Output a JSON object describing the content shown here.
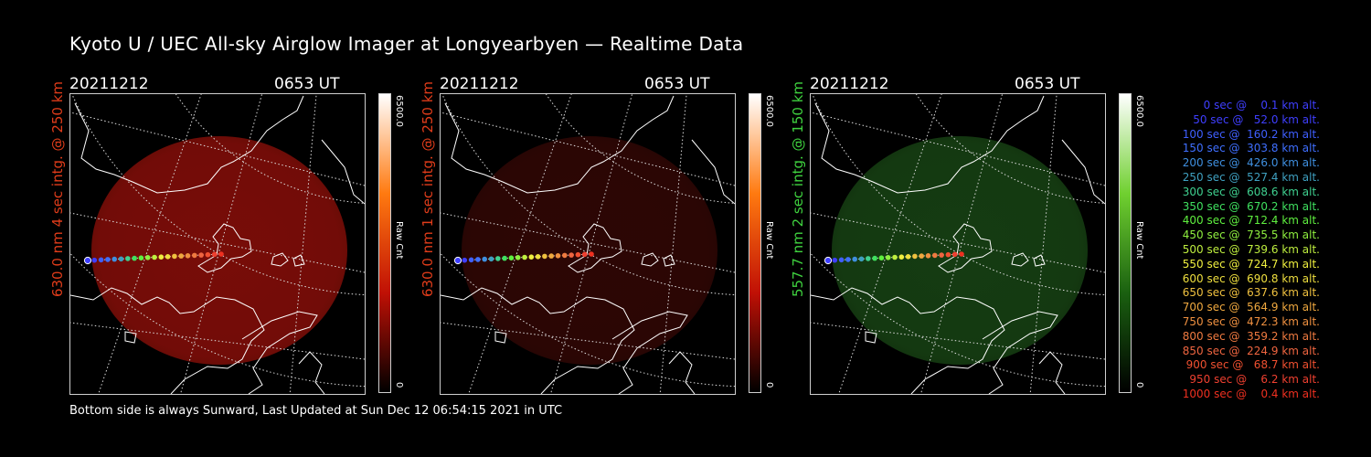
{
  "title": "Kyoto U / UEC All-sky Airglow Imager at Longyearbyen — Realtime Data",
  "footer": "Bottom side is always Sunward, Last Updated at Sun Dec 12 06:54:15 2021 in UTC",
  "panels": [
    {
      "date": "20211212",
      "time": "0653 UT",
      "label": "630.0 nm 4 sec intg. @ 250 km",
      "label_color": "#e03c1a",
      "cbar_max": "6500.0",
      "cbar_min": "0",
      "cbar_unit": "Raw Cnt",
      "glow_color": "#7a0d08",
      "glow_level": 0.55,
      "cbar_colors": [
        "#ffffff",
        "#ff7a10",
        "#c01005",
        "#000000"
      ]
    },
    {
      "date": "20211212",
      "time": "0653 UT",
      "label": "630.0 nm 1 sec intg. @ 250 km",
      "label_color": "#e03c1a",
      "cbar_max": "6500.0",
      "cbar_min": "0",
      "cbar_unit": "Raw Cnt",
      "glow_color": "#3a0806",
      "glow_level": 0.25,
      "cbar_colors": [
        "#ffffff",
        "#ff7a10",
        "#c01005",
        "#000000"
      ]
    },
    {
      "date": "20211212",
      "time": "0653 UT",
      "label": "557.7 nm 2 sec intg. @ 150 km",
      "label_color": "#3fd23f",
      "cbar_max": "6500.0",
      "cbar_min": "0",
      "cbar_unit": "Raw Cnt",
      "glow_color": "#1a4a16",
      "glow_level": 0.3,
      "cbar_colors": [
        "#ffffff",
        "#70d030",
        "#1a6010",
        "#000000"
      ]
    }
  ],
  "legend": [
    {
      "text": "   0 sec @    0.1 km alt.",
      "color": "#3f3fff"
    },
    {
      "text": "  50 sec @   52.0 km alt.",
      "color": "#3f3fff"
    },
    {
      "text": " 100 sec @  160.2 km alt.",
      "color": "#3f5fff"
    },
    {
      "text": " 150 sec @  303.8 km alt.",
      "color": "#3f6fff"
    },
    {
      "text": " 200 sec @  426.0 km alt.",
      "color": "#3f8fdf"
    },
    {
      "text": " 250 sec @  527.4 km alt.",
      "color": "#3fa0c0"
    },
    {
      "text": " 300 sec @  608.6 km alt.",
      "color": "#3fd08f"
    },
    {
      "text": " 350 sec @  670.2 km alt.",
      "color": "#3fe05f"
    },
    {
      "text": " 400 sec @  712.4 km alt.",
      "color": "#5fef3f"
    },
    {
      "text": " 450 sec @  735.5 km alt.",
      "color": "#8fef3f"
    },
    {
      "text": " 500 sec @  739.6 km alt.",
      "color": "#bfef3f"
    },
    {
      "text": " 550 sec @  724.7 km alt.",
      "color": "#efef3f"
    },
    {
      "text": " 600 sec @  690.8 km alt.",
      "color": "#efdf3f"
    },
    {
      "text": " 650 sec @  637.6 km alt.",
      "color": "#efc03f"
    },
    {
      "text": " 700 sec @  564.9 km alt.",
      "color": "#efa83f"
    },
    {
      "text": " 750 sec @  472.3 km alt.",
      "color": "#ef9040"
    },
    {
      "text": " 800 sec @  359.2 km alt.",
      "color": "#ef7a40"
    },
    {
      "text": " 850 sec @  224.9 km alt.",
      "color": "#ef6540"
    },
    {
      "text": " 900 sec @   68.7 km alt.",
      "color": "#ef5030"
    },
    {
      "text": " 950 sec @    6.2 km alt.",
      "color": "#ef4030"
    },
    {
      "text": "1000 sec @    0.4 km alt.",
      "color": "#ef3020"
    }
  ]
}
